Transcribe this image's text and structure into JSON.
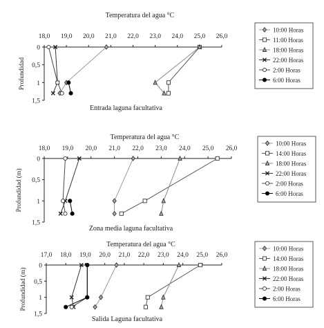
{
  "chart_data": [
    {
      "type": "line",
      "title": "Temperatura del agua °C",
      "xlabel": "Temperatura del agua °C",
      "ylabel": "Profundidad",
      "caption": "Entrada laguna facultativa",
      "xlim": [
        18.0,
        26.0
      ],
      "ylim": [
        0,
        1.5
      ],
      "x_ticks": [
        "18,0",
        "19,0",
        "20,0",
        "21,0",
        "22,0",
        "23,0",
        "24,0",
        "25,0",
        "26,0"
      ],
      "y_ticks": [
        "0",
        "0,5",
        "1",
        "1,5"
      ],
      "legend_position": "right",
      "series": [
        {
          "name": "10:00 Horas",
          "marker": "diamond",
          "points": [
            [
              20.8,
              0
            ],
            [
              19.0,
              1.0
            ],
            [
              18.7,
              1.3
            ]
          ]
        },
        {
          "name": "11:00 Horas",
          "marker": "square",
          "points": [
            [
              25.0,
              0
            ],
            [
              23.6,
              1.0
            ],
            [
              23.6,
              1.3
            ]
          ]
        },
        {
          "name": "18:00 Horas",
          "marker": "triangle",
          "points": [
            [
              25.0,
              0
            ],
            [
              23.0,
              1.0
            ],
            [
              23.4,
              1.3
            ]
          ]
        },
        {
          "name": "22:00 Horas",
          "marker": "x",
          "points": [
            [
              18.5,
              0
            ],
            [
              18.6,
              1.0
            ],
            [
              18.4,
              1.3
            ]
          ]
        },
        {
          "name": "2:00 Horas",
          "marker": "circle-open",
          "points": [
            [
              18.2,
              0
            ],
            [
              18.6,
              1.0
            ],
            [
              18.8,
              1.3
            ]
          ]
        },
        {
          "name": "6:00 Horas",
          "marker": "circle-filled",
          "points": [
            [
              19.1,
              1.0
            ],
            [
              19.2,
              1.3
            ]
          ]
        }
      ]
    },
    {
      "type": "line",
      "title": "Temperatura del agua °C",
      "xlabel": "Temperatura del agua °C",
      "ylabel": "Profundidad (m)",
      "caption": "Zona media laguna facultativa",
      "xlim": [
        18.0,
        26.0
      ],
      "ylim": [
        0,
        1.5
      ],
      "x_ticks": [
        "18,0",
        "19,0",
        "20,0",
        "21,0",
        "22,0",
        "23,0",
        "24,0",
        "25,0",
        "26,0"
      ],
      "y_ticks": [
        "0",
        "0,5",
        "1",
        "1,5"
      ],
      "legend_position": "right",
      "series": [
        {
          "name": "10:00 Horas",
          "marker": "diamond",
          "points": [
            [
              21.8,
              0
            ],
            [
              21.0,
              1.0
            ],
            [
              21.0,
              1.3
            ]
          ]
        },
        {
          "name": "14:00 Horas",
          "marker": "square",
          "points": [
            [
              25.4,
              0
            ],
            [
              22.3,
              1.0
            ],
            [
              21.3,
              1.3
            ]
          ]
        },
        {
          "name": "18:00 Horas",
          "marker": "triangle",
          "points": [
            [
              23.8,
              0
            ],
            [
              23.1,
              1.0
            ],
            [
              23.0,
              1.3
            ]
          ]
        },
        {
          "name": "22:00 Horas",
          "marker": "x",
          "points": [
            [
              19.5,
              0
            ],
            [
              18.9,
              1.0
            ],
            [
              18.7,
              1.3
            ]
          ]
        },
        {
          "name": "2:00 Horas",
          "marker": "circle-open",
          "points": [
            [
              18.9,
              0
            ],
            [
              18.8,
              1.0
            ],
            [
              18.9,
              1.3
            ]
          ]
        },
        {
          "name": "6:00 Horas",
          "marker": "circle-filled",
          "points": [
            [
              19.1,
              1.0
            ],
            [
              19.2,
              1.3
            ]
          ]
        }
      ]
    },
    {
      "type": "line",
      "title": "Temperatura del agua °C",
      "xlabel": "Temperatura del agua °C",
      "ylabel": "Profundidad (m)",
      "caption": "Salida Laguna facultativa",
      "xlim": [
        17.0,
        26.0
      ],
      "ylim": [
        0,
        1.5
      ],
      "x_ticks": [
        "17,0",
        "18,0",
        "19,0",
        "20,0",
        "21,0",
        "22,0",
        "23,0",
        "24,0",
        "25,0",
        "26,0"
      ],
      "y_ticks": [
        "0",
        "0,5",
        "1",
        "1,5"
      ],
      "legend_position": "right",
      "series": [
        {
          "name": "10:00 Horas",
          "marker": "diamond",
          "points": [
            [
              20.6,
              0
            ],
            [
              19.8,
              1.0
            ],
            [
              19.5,
              1.3
            ]
          ]
        },
        {
          "name": "14:00 Horas",
          "marker": "square",
          "points": [
            [
              24.9,
              0
            ],
            [
              22.2,
              1.0
            ],
            [
              22.1,
              1.3
            ]
          ]
        },
        {
          "name": "18:00 Horas",
          "marker": "triangle",
          "points": [
            [
              23.8,
              0
            ],
            [
              23.0,
              1.0
            ],
            [
              22.9,
              1.3
            ]
          ]
        },
        {
          "name": "22:00 Horas",
          "marker": "x",
          "points": [
            [
              18.8,
              0
            ],
            [
              18.3,
              1.0
            ],
            [
              18.4,
              1.3
            ]
          ]
        },
        {
          "name": "2:00 Horas",
          "marker": "circle-open",
          "points": [
            [
              19.1,
              0
            ],
            [
              19.1,
              1.0
            ],
            [
              18.3,
              1.3
            ]
          ]
        },
        {
          "name": "6:00 Horas",
          "marker": "circle-filled",
          "points": [
            [
              19.1,
              0
            ],
            [
              19.1,
              1.0
            ],
            [
              18.0,
              1.3
            ]
          ]
        }
      ]
    }
  ]
}
